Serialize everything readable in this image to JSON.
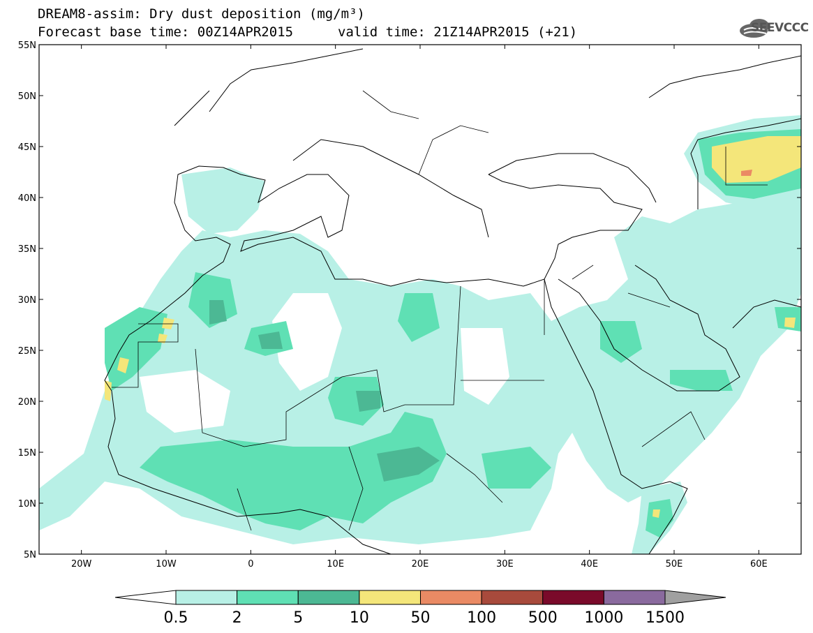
{
  "header": {
    "title": "DREAM8-assim: Dry dust deposition (mg/m³)",
    "base_time": "Forecast base time: 00Z14APR2015",
    "valid_time": "valid time: 21Z14APR2015 (+21)"
  },
  "logo": {
    "text": "SEEVCCC",
    "icon": "cloud-logo-icon"
  },
  "map": {
    "lon_range": [
      -25,
      65
    ],
    "lat_range": [
      5,
      55
    ],
    "lat_ticks": [
      "5N",
      "10N",
      "15N",
      "20N",
      "25N",
      "30N",
      "35N",
      "40N",
      "45N",
      "50N",
      "55N"
    ],
    "lon_ticks": [
      "20W",
      "10W",
      "0",
      "10E",
      "20E",
      "30E",
      "40E",
      "50E",
      "60E"
    ],
    "background": "#ffffff",
    "coastline_color": "#000000"
  },
  "colorbar": {
    "labels": [
      "0.5",
      "2",
      "5",
      "10",
      "50",
      "100",
      "500",
      "1000",
      "1500"
    ],
    "colors": [
      "#ffffff",
      "#b8f0e6",
      "#5fe0b4",
      "#4cb894",
      "#f4e67a",
      "#ea8a64",
      "#a84a3c",
      "#7a0a2a",
      "#8a6a9e",
      "#a0a0a0"
    ]
  }
}
